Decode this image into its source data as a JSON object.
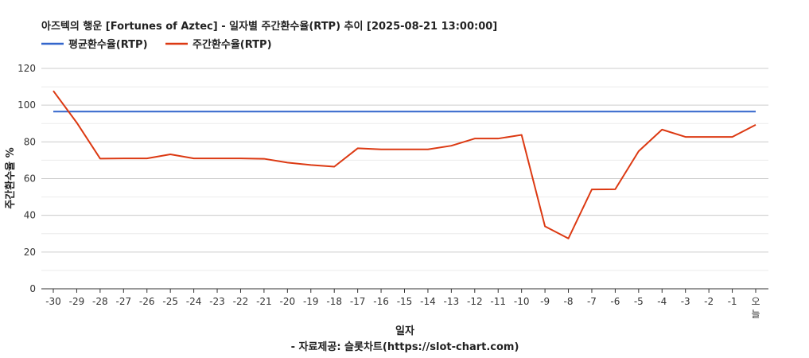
{
  "chart_data": {
    "type": "line",
    "title": "아즈텍의 행운 [Fortunes of Aztec] - 일자별 주간환수율(RTP) 추이 [2025-08-21 13:00:00]",
    "xlabel": "일자",
    "ylabel": "주간환수율 %",
    "source": "- 자료제공: 슬롯차트(https://slot-chart.com)",
    "ylim": [
      0,
      120
    ],
    "yticks": [
      0,
      20,
      40,
      60,
      80,
      100,
      120
    ],
    "grid": true,
    "legend_position": "top-left",
    "categories": [
      "-30",
      "-29",
      "-28",
      "-27",
      "-26",
      "-25",
      "-24",
      "-23",
      "-22",
      "-21",
      "-20",
      "-19",
      "-18",
      "-17",
      "-16",
      "-15",
      "-14",
      "-13",
      "-12",
      "-11",
      "-10",
      "-9",
      "-8",
      "-7",
      "-6",
      "-5",
      "-4",
      "-3",
      "-2",
      "-1",
      "오늘"
    ],
    "series": [
      {
        "name": "평균환수율(RTP)",
        "color": "#3366cc",
        "values": [
          96.5,
          96.5,
          96.5,
          96.5,
          96.5,
          96.5,
          96.5,
          96.5,
          96.5,
          96.5,
          96.5,
          96.5,
          96.5,
          96.5,
          96.5,
          96.5,
          96.5,
          96.5,
          96.5,
          96.5,
          96.5,
          96.5,
          96.5,
          96.5,
          96.5,
          96.5,
          96.5,
          96.5,
          96.5,
          96.5,
          96.5
        ]
      },
      {
        "name": "주간환수율(RTP)",
        "color": "#dc3912",
        "values": [
          107.8,
          90.5,
          70.9,
          71.0,
          71.0,
          73.2,
          71.0,
          71.0,
          71.0,
          70.8,
          68.7,
          67.4,
          66.5,
          76.5,
          75.9,
          75.9,
          75.9,
          77.9,
          81.8,
          81.8,
          83.8,
          34.0,
          27.4,
          54.1,
          54.2,
          74.9,
          86.7,
          82.7,
          82.7,
          82.7,
          89.3
        ]
      }
    ]
  }
}
